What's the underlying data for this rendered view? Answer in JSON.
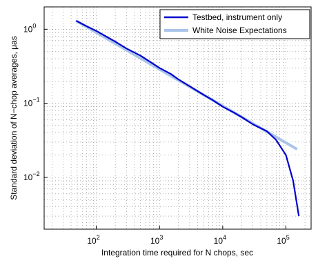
{
  "chart_data": {
    "type": "line",
    "xlabel": "Integration time required for N chops,   sec",
    "ylabel": "Standard deviation of N−chop averages,   μas",
    "x_scale": "log",
    "y_scale": "log",
    "xlim": [
      15,
      250000
    ],
    "ylim": [
      0.002,
      2
    ],
    "grid": true,
    "legend_position": "top-right",
    "x_ticks": [
      {
        "base": "10",
        "exp": "2",
        "value": 100
      },
      {
        "base": "10",
        "exp": "3",
        "value": 1000
      },
      {
        "base": "10",
        "exp": "4",
        "value": 10000
      },
      {
        "base": "10",
        "exp": "5",
        "value": 100000
      }
    ],
    "y_ticks": [
      {
        "base": "10",
        "exp": "0",
        "value": 1
      },
      {
        "base": "10",
        "exp": "−1",
        "value": 0.1
      },
      {
        "base": "10",
        "exp": "−2",
        "value": 0.01
      }
    ],
    "series": [
      {
        "name": "Testbed, instrument only",
        "color": "#0000cc",
        "x": [
          48,
          70,
          100,
          150,
          200,
          300,
          500,
          800,
          1000,
          1500,
          2000,
          3000,
          5000,
          7000,
          10000,
          15000,
          20000,
          30000,
          50000,
          70000,
          100000,
          130000,
          160000
        ],
        "y": [
          1.3,
          1.1,
          0.95,
          0.78,
          0.68,
          0.55,
          0.44,
          0.34,
          0.3,
          0.25,
          0.21,
          0.17,
          0.13,
          0.11,
          0.09,
          0.075,
          0.065,
          0.052,
          0.042,
          0.032,
          0.02,
          0.009,
          0.003
        ]
      },
      {
        "name": "White Noise Expectations",
        "color": "#aac4ea",
        "x": [
          48,
          150000
        ],
        "y": [
          1.3,
          0.024
        ]
      }
    ]
  }
}
